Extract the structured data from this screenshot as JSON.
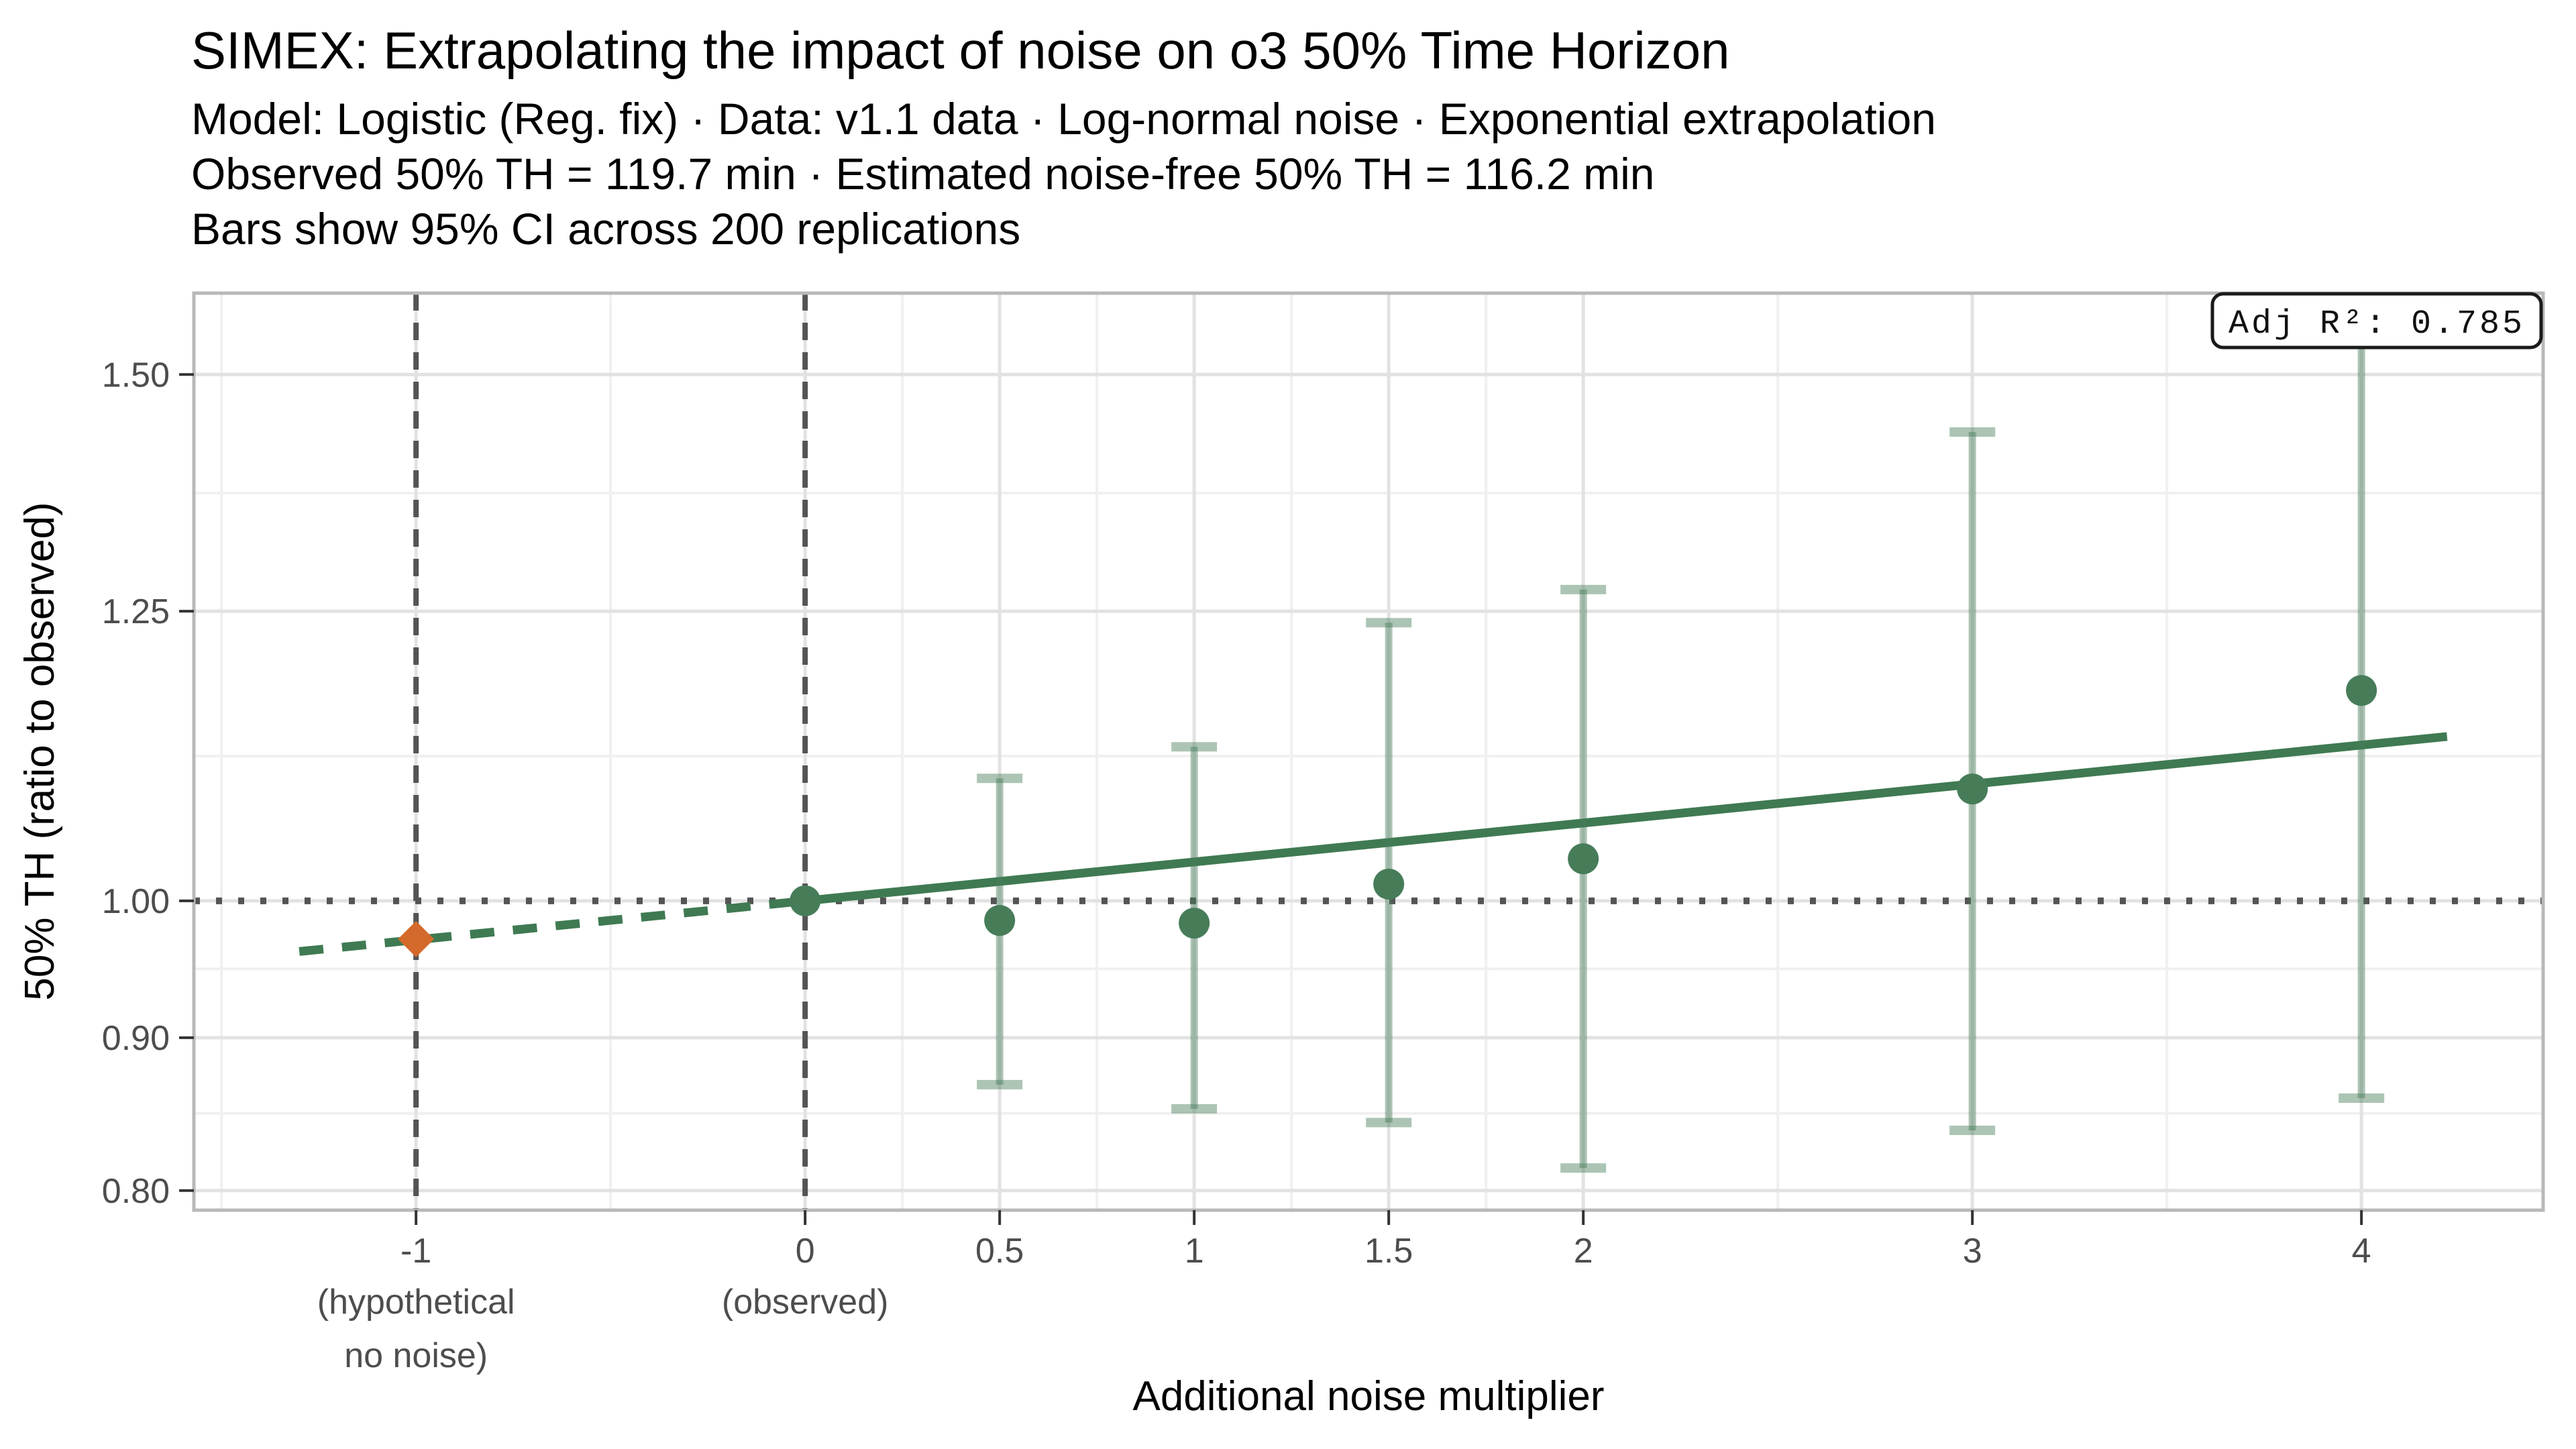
{
  "header": {
    "title": "SIMEX: Extrapolating the impact of noise on o3 50% Time Horizon",
    "subtitle_lines": [
      "Model: Logistic (Reg. fix) · Data: v1.1 data · Log-normal noise · Exponential extrapolation",
      "Observed 50% TH = 119.7 min · Estimated noise-free 50% TH = 116.2 min",
      "Bars show 95% CI across 200 replications"
    ]
  },
  "colors": {
    "point_green": "#477C59",
    "line_green": "#3F7A52",
    "ci_green": "rgba(71,124,89,0.45)",
    "diamond_orange": "#D36A2B",
    "reference_gray": "#545454",
    "grid_major": "#E2E2E2",
    "grid_minor": "#F0F0F0",
    "panel_border": "#B8B8B8",
    "tick_mark": "#333333",
    "tick_text": "#4D4D4D"
  },
  "chart_data": {
    "type": "scatter",
    "title": "SIMEX: Extrapolating the impact of noise on o3 50% Time Horizon",
    "x_axis": {
      "label": "Additional noise multiplier",
      "scale": "linear",
      "range": [
        -1.571,
        4.467
      ],
      "major_ticks": [
        {
          "value": -1,
          "label": "-1",
          "sublabels": [
            "(hypothetical",
            "no noise)"
          ]
        },
        {
          "value": 0,
          "label": "0",
          "sublabels": [
            "(observed)"
          ]
        },
        {
          "value": 0.5,
          "label": "0.5",
          "sublabels": []
        },
        {
          "value": 1,
          "label": "1",
          "sublabels": []
        },
        {
          "value": 1.5,
          "label": "1.5",
          "sublabels": []
        },
        {
          "value": 2,
          "label": "2",
          "sublabels": []
        },
        {
          "value": 3,
          "label": "3",
          "sublabels": []
        },
        {
          "value": 4,
          "label": "4",
          "sublabels": []
        }
      ],
      "minor_gridlines": [
        -1.5,
        -0.5,
        0.25,
        0.75,
        1.25,
        1.75,
        2.5,
        3.5
      ]
    },
    "y_axis": {
      "label": "50% TH (ratio to observed)",
      "scale": "log10",
      "range": [
        0.788,
        1.597
      ],
      "major_ticks": [
        {
          "value": 1.5,
          "label": "1.50"
        },
        {
          "value": 1.25,
          "label": "1.25"
        },
        {
          "value": 1.0,
          "label": "1.00"
        },
        {
          "value": 0.9,
          "label": "0.90"
        },
        {
          "value": 0.8,
          "label": "0.80"
        }
      ],
      "minor_gridlines": [
        1.369,
        1.118,
        0.949,
        0.849
      ]
    },
    "reference_lines": {
      "vertical_dashed_x": [
        -1,
        0
      ],
      "horizontal_dotted_y": 1.0
    },
    "series": [
      {
        "name": "simex-mean-ratio-with-95ci",
        "marker": "circle",
        "points": [
          {
            "x": 0,
            "y": 1.0,
            "ci_low": null,
            "ci_high": null
          },
          {
            "x": 0.5,
            "y": 0.985,
            "ci_low": 0.868,
            "ci_high": 1.099
          },
          {
            "x": 1,
            "y": 0.983,
            "ci_low": 0.852,
            "ci_high": 1.126
          },
          {
            "x": 1.5,
            "y": 1.013,
            "ci_low": 0.843,
            "ci_high": 1.239
          },
          {
            "x": 2,
            "y": 1.033,
            "ci_low": 0.814,
            "ci_high": 1.271
          },
          {
            "x": 3,
            "y": 1.09,
            "ci_low": 0.838,
            "ci_high": 1.435
          },
          {
            "x": 4,
            "y": 1.176,
            "ci_low": 0.859,
            "ci_high": 1.597,
            "ci_high_clipped": true
          }
        ]
      },
      {
        "name": "extrapolated-noise-free-estimate",
        "marker": "diamond",
        "points": [
          {
            "x": -1,
            "y": 0.971,
            "ci_low": null,
            "ci_high": null
          }
        ]
      }
    ],
    "fit_line": {
      "model": "exponential",
      "rate": 0.03,
      "solid_x_range": [
        0,
        4.22
      ],
      "dashed_x_range": [
        -1.3,
        0
      ]
    },
    "annotation": {
      "label": "Adj R²: 0.785"
    }
  }
}
